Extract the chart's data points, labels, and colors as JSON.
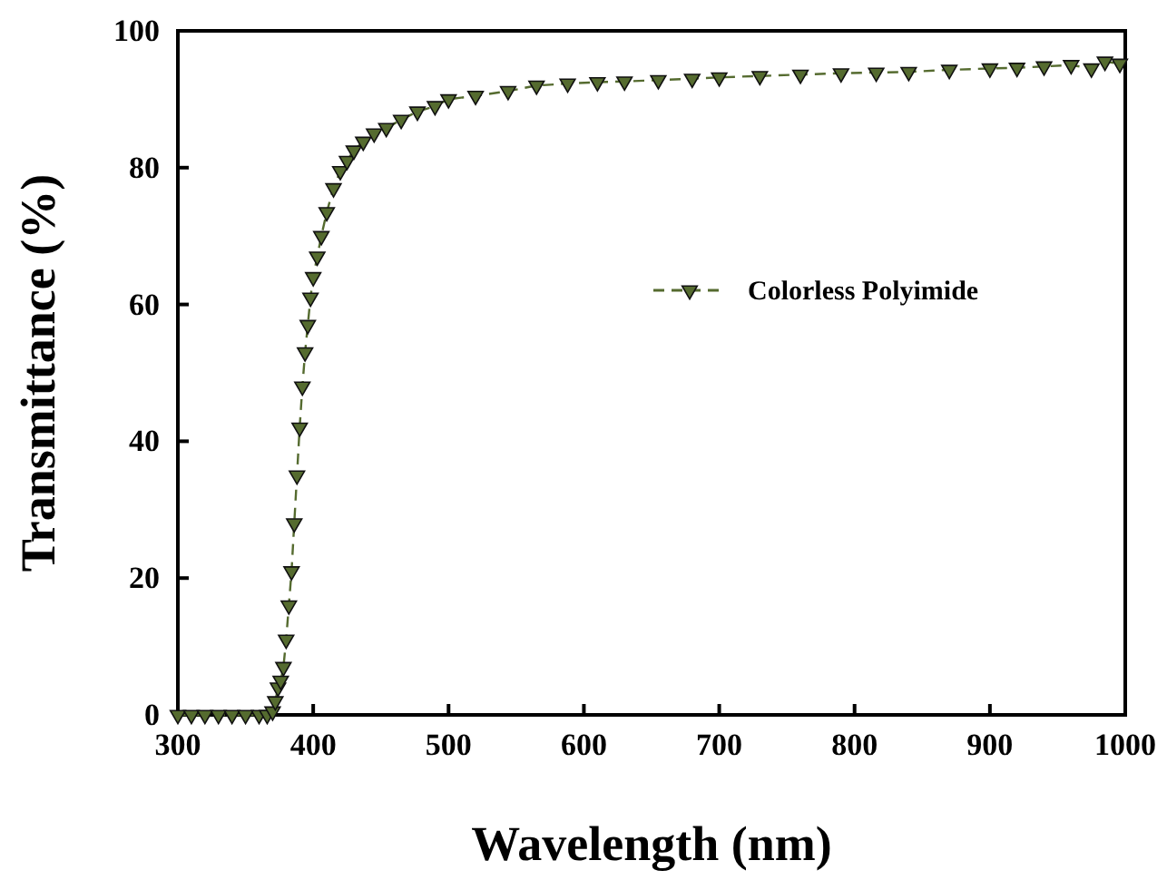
{
  "chart_data": {
    "type": "line",
    "xlabel": "Wavelength (nm)",
    "ylabel": "Transmittance (%)",
    "xlim": [
      300,
      1000
    ],
    "xticks": [
      300,
      400,
      500,
      600,
      700,
      800,
      900,
      1000
    ],
    "ylim": [
      0,
      100
    ],
    "yticks": [
      0,
      20,
      40,
      60,
      80,
      100
    ],
    "grid": false,
    "legend": "right",
    "marker": "triangle",
    "line_style": "dashed",
    "series": [
      {
        "name": "Colorless Polyimide",
        "color": "#556b2f",
        "x": [
          300,
          310,
          320,
          330,
          340,
          350,
          360,
          366,
          370,
          372,
          374,
          376,
          378,
          380,
          382,
          384,
          386,
          388,
          390,
          392,
          394,
          396,
          398,
          400,
          403,
          406,
          410,
          415,
          420,
          425,
          430,
          437,
          445,
          454,
          465,
          477,
          490,
          500,
          520,
          544,
          565,
          588,
          610,
          630,
          655,
          680,
          700,
          730,
          760,
          790,
          816,
          840,
          870,
          900,
          920,
          940,
          960,
          975,
          985,
          996
        ],
        "values": [
          0,
          0,
          0,
          0,
          0,
          0,
          0,
          0,
          0.5,
          2,
          4,
          5,
          7,
          11,
          16,
          21,
          28,
          35,
          42,
          48,
          53,
          57,
          61,
          64,
          67,
          70,
          73.5,
          77,
          79.5,
          81,
          82.5,
          83.8,
          85,
          85.8,
          87,
          88.2,
          89,
          90,
          90.5,
          91.2,
          92,
          92.3,
          92.5,
          92.6,
          92.8,
          93,
          93.2,
          93.4,
          93.6,
          93.8,
          93.9,
          94,
          94.3,
          94.5,
          94.6,
          94.8,
          95,
          94.5,
          95.5,
          95.2
        ]
      }
    ]
  }
}
